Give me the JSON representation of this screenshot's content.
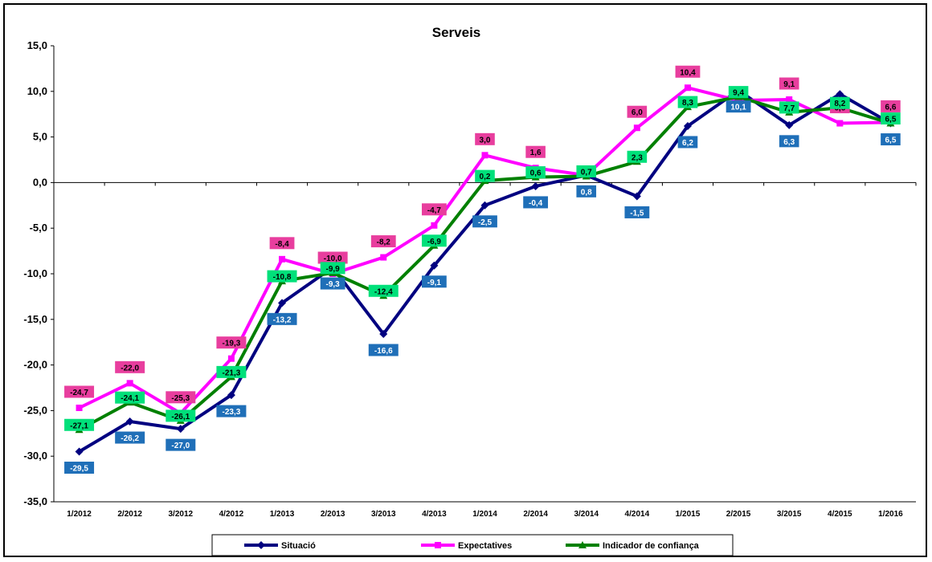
{
  "chart_data": {
    "type": "line",
    "title": "Serveis",
    "xlabel": "",
    "ylabel": "",
    "ylim": [
      -35,
      15
    ],
    "yticks": [
      "15,0",
      "10,0",
      "5,0",
      "0,0",
      "-5,0",
      "-10,0",
      "-15,0",
      "-20,0",
      "-25,0",
      "-30,0",
      "-35,0"
    ],
    "categories": [
      "1/2012",
      "2/2012",
      "3/2012",
      "4/2012",
      "1/2013",
      "2/2013",
      "3/2013",
      "4/2013",
      "1/2014",
      "2/2014",
      "3/2014",
      "4/2014",
      "1/2015",
      "2/2015",
      "3/2015",
      "4/2015",
      "1/2016"
    ],
    "series": [
      {
        "name": "Situació",
        "color": "#000080",
        "label_bg": "#1f6fb8",
        "marker": "diamond",
        "values": [
          -29.5,
          -26.2,
          -27.0,
          -23.3,
          -13.2,
          -9.3,
          -16.6,
          -9.1,
          -2.5,
          -0.4,
          0.8,
          -1.5,
          6.2,
          10.1,
          6.3,
          9.7,
          6.5
        ],
        "labels": [
          "-29,5",
          "-26,2",
          "-27,0",
          "-23,3",
          "-13,2",
          "-9,3",
          "-16,6",
          "-9,1",
          "-2,5",
          "-0,4",
          "0,8",
          "-1,5",
          "6,2",
          "10,1",
          "6,3",
          "",
          "6,5"
        ]
      },
      {
        "name": "Expectatives",
        "color": "#ff00ff",
        "label_bg": "#e83e9e",
        "marker": "square",
        "values": [
          -24.7,
          -22.0,
          -25.3,
          -19.3,
          -8.4,
          -10.0,
          -8.2,
          -4.7,
          3.0,
          1.6,
          0.8,
          6.0,
          10.4,
          9.0,
          9.1,
          6.5,
          6.6
        ],
        "labels": [
          "-24,7",
          "-22,0",
          "-25,3",
          "-19,3",
          "-8,4",
          "-10,0",
          "-8,2",
          "-4,7",
          "3,0",
          "1,6",
          "",
          "6,0",
          "10,4",
          "",
          "9,1",
          "6,5",
          "6,6"
        ]
      },
      {
        "name": "Indicador de confiança",
        "color": "#008000",
        "label_bg": "#00e07a",
        "marker": "triangle",
        "values": [
          -27.1,
          -24.1,
          -26.1,
          -21.3,
          -10.8,
          -9.9,
          -12.4,
          -6.9,
          0.2,
          0.6,
          0.7,
          2.3,
          8.3,
          9.4,
          7.7,
          8.2,
          6.5
        ],
        "labels": [
          "-27,1",
          "-24,1",
          "-26,1",
          "-21,3",
          "-10,8",
          "-9,9",
          "-12,4",
          "-6,9",
          "0,2",
          "0,6",
          "0,7",
          "2,3",
          "8,3",
          "9,4",
          "7,7",
          "8,2",
          "6,5"
        ]
      }
    ],
    "legend_position": "bottom",
    "grid": false
  }
}
